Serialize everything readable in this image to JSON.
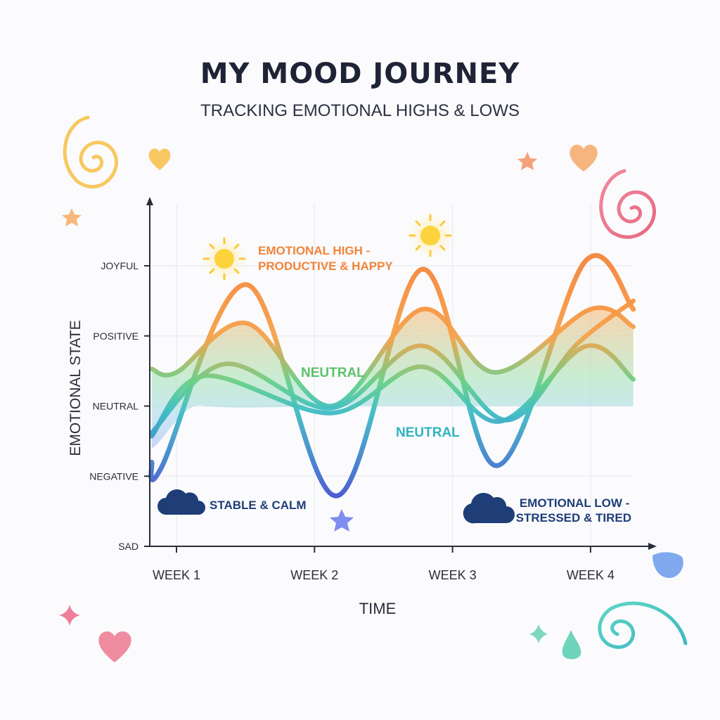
{
  "title": "MY MOOD JOURNEY",
  "subtitle": "TRACKING EMOTIONAL HIGHS & LOWS",
  "chart_data": {
    "type": "line",
    "xlabel": "TIME",
    "ylabel": "EMOTIONAL STATE",
    "x_ticks": [
      {
        "label": "WEEK 1",
        "value": 1
      },
      {
        "label": "WEEK 2",
        "value": 2
      },
      {
        "label": "WEEK 3",
        "value": 3
      },
      {
        "label": "WEEK 4",
        "value": 4
      }
    ],
    "y_ticks": [
      {
        "label": "SAD",
        "value": 0
      },
      {
        "label": "NEGATIVE",
        "value": 1
      },
      {
        "label": "NEUTRAL",
        "value": 2
      },
      {
        "label": "POSITIVE",
        "value": 3
      },
      {
        "label": "JOYFUL",
        "value": 4
      }
    ],
    "xlim": [
      0.82,
      4.31
    ],
    "ylim": [
      0,
      4
    ],
    "grid": true,
    "colors": {
      "high": "#f5863a",
      "mid": "#5fcf8a",
      "low": "#4657d6"
    },
    "series": [
      {
        "x": [
          0.82,
          0.89,
          1.51,
          2.16,
          2.78,
          3.32,
          3.96,
          4.31
        ],
        "y": [
          1.2,
          1.12,
          3.73,
          0.72,
          3.95,
          1.15,
          4.06,
          3.38
        ]
      },
      {
        "x": [
          0.82,
          1.0,
          1.51,
          2.12,
          2.78,
          3.31,
          4.0,
          4.31
        ],
        "y": [
          2.53,
          2.48,
          3.18,
          2.0,
          3.38,
          2.48,
          3.38,
          3.13
        ]
      },
      {
        "x": [
          0.82,
          1.35,
          2.12,
          2.78,
          3.39,
          3.9,
          4.31
        ],
        "y": [
          1.62,
          2.6,
          1.97,
          2.86,
          1.8,
          2.88,
          3.5
        ]
      },
      {
        "x": [
          0.82,
          1.2,
          2.12,
          2.78,
          3.34,
          3.96,
          4.31
        ],
        "y": [
          1.57,
          2.43,
          1.9,
          2.56,
          1.78,
          2.85,
          2.38
        ]
      }
    ],
    "annotations": [
      {
        "text": [
          "EMOTIONAL HIGH -",
          "PRODUCTIVE & HAPPY"
        ],
        "color": "#f0843a"
      },
      {
        "text": [
          "NEUTRAL"
        ],
        "color": "#5cc26a"
      },
      {
        "text": [
          "NEUTRAL"
        ],
        "color": "#2fb4c0"
      },
      {
        "text": [
          "STABLE & CALM"
        ],
        "color": "#1f3e78"
      },
      {
        "text": [
          "EMOTIONAL LOW -",
          "STRESSED & TIRED"
        ],
        "color": "#1f3e78"
      }
    ]
  }
}
